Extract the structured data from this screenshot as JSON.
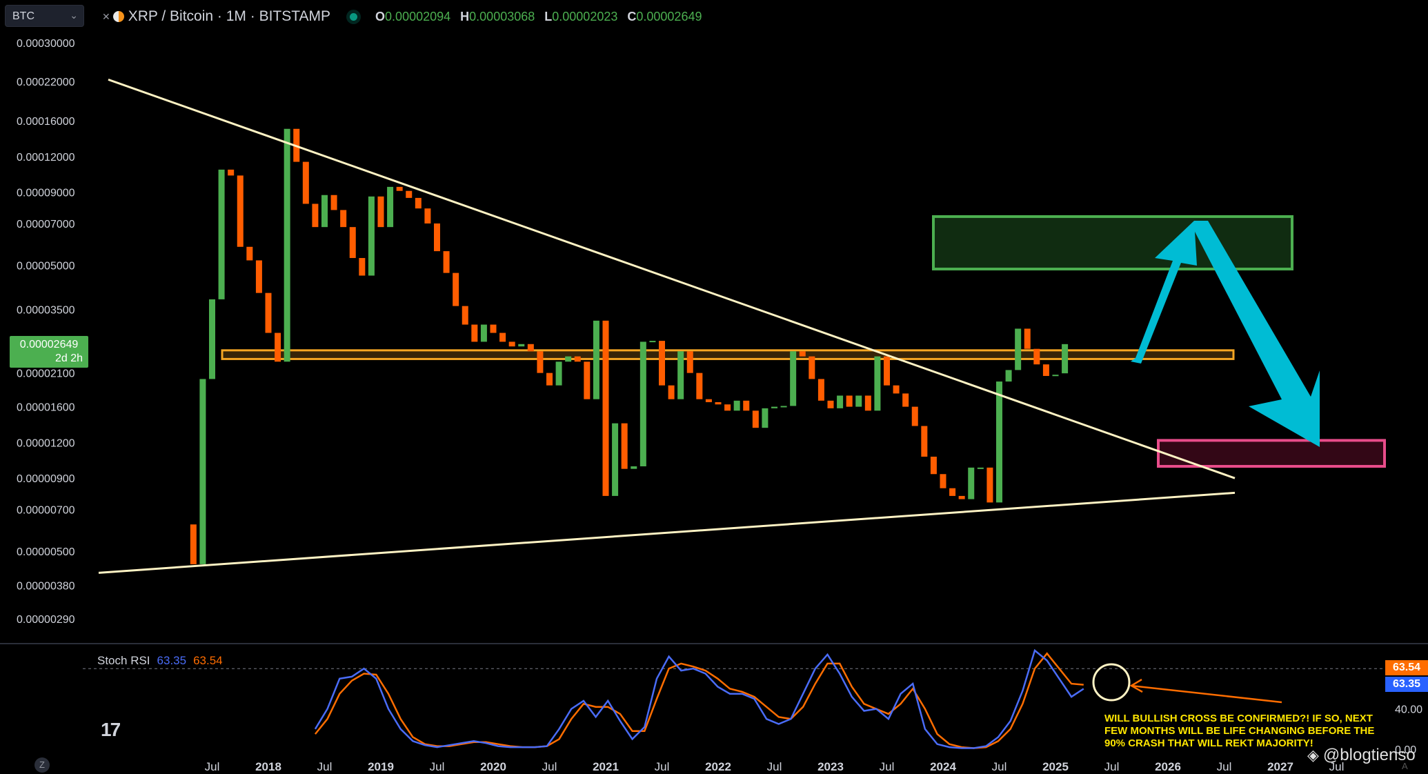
{
  "header": {
    "symbol_box": "BTC",
    "title": "XRP / Bitcoin · 1M · BITSTAMP",
    "ohlc": [
      {
        "k": "O",
        "v": "0.00002094"
      },
      {
        "k": "H",
        "v": "0.00003068"
      },
      {
        "k": "L",
        "v": "0.00002023"
      },
      {
        "k": "C",
        "v": "0.00002649"
      }
    ]
  },
  "price_badge": {
    "price": "0.00002649",
    "countdown": "2d 2h"
  },
  "colors": {
    "up": "#4caf50",
    "down": "#ff5d00",
    "trend": "#fff3c4",
    "stoch_k": "#4a6cf7",
    "stoch_d": "#ff6d00",
    "support_band": "#f5a623",
    "target_box": "#4caf50",
    "crash_box": "#e84c8a",
    "arrow": "#00bcd4"
  },
  "stoch": {
    "label": "Stoch RSI",
    "k": "63.35",
    "d": "63.54",
    "axis_labels": [
      "40.00",
      "0.00"
    ]
  },
  "annotation": "WILL BULLISH CROSS BE CONFIRMED?! IF SO, NEXT FEW MONTHS WILL BE LIFE CHANGING BEFORE THE 90% CRASH THAT WILL REKT MAJORITY!",
  "watermark": "@blogtienso",
  "zoom_button": "Z",
  "auto_label": "A",
  "chart_data": {
    "type": "candlestick",
    "title": "XRP / Bitcoin · 1M · BITSTAMP",
    "y_scale": "log",
    "y_ticks": [
      "0.00030000",
      "0.00022000",
      "0.00016000",
      "0.00012000",
      "0.00009000",
      "0.00007000",
      "0.00005000",
      "0.00003500",
      "0.00002100",
      "0.00001600",
      "0.00001200",
      "0.00000900",
      "0.00000700",
      "0.00000500",
      "0.00000380",
      "0.00000290"
    ],
    "x_ticks": [
      "Jul",
      "2018",
      "Jul",
      "2019",
      "Jul",
      "2020",
      "Jul",
      "2021",
      "Jul",
      "2022",
      "Jul",
      "2023",
      "Jul",
      "2024",
      "Jul",
      "2025",
      "Jul",
      "2026",
      "Jul",
      "2027",
      "Jul"
    ],
    "candles": [
      {
        "o": 6.2e-06,
        "c": 4.5e-06
      },
      {
        "o": 4.5e-06,
        "c": 2e-05
      },
      {
        "o": 2e-05,
        "c": 3.8e-05
      },
      {
        "o": 3.8e-05,
        "c": 0.000108
      },
      {
        "o": 0.000108,
        "c": 0.000103
      },
      {
        "o": 0.000103,
        "c": 5.8e-05
      },
      {
        "o": 5.8e-05,
        "c": 5.2e-05
      },
      {
        "o": 5.2e-05,
        "c": 4e-05
      },
      {
        "o": 4e-05,
        "c": 2.9e-05
      },
      {
        "o": 2.9e-05,
        "c": 2.3e-05
      },
      {
        "o": 2.3e-05,
        "c": 0.00015
      },
      {
        "o": 0.00015,
        "c": 0.000115
      },
      {
        "o": 0.000115,
        "c": 8.2e-05
      },
      {
        "o": 8.2e-05,
        "c": 6.8e-05
      },
      {
        "o": 6.8e-05,
        "c": 8.8e-05
      },
      {
        "o": 8.8e-05,
        "c": 7.8e-05
      },
      {
        "o": 7.8e-05,
        "c": 6.8e-05
      },
      {
        "o": 6.8e-05,
        "c": 5.3e-05
      },
      {
        "o": 5.3e-05,
        "c": 4.6e-05
      },
      {
        "o": 4.6e-05,
        "c": 8.7e-05
      },
      {
        "o": 8.7e-05,
        "c": 6.8e-05
      },
      {
        "o": 6.8e-05,
        "c": 9.4e-05
      },
      {
        "o": 9.4e-05,
        "c": 9.1e-05
      },
      {
        "o": 9.1e-05,
        "c": 8.6e-05
      },
      {
        "o": 8.6e-05,
        "c": 7.9e-05
      },
      {
        "o": 7.9e-05,
        "c": 7e-05
      },
      {
        "o": 7e-05,
        "c": 5.6e-05
      },
      {
        "o": 5.6e-05,
        "c": 4.7e-05
      },
      {
        "o": 4.7e-05,
        "c": 3.6e-05
      },
      {
        "o": 3.6e-05,
        "c": 3.1e-05
      },
      {
        "o": 3.1e-05,
        "c": 2.7e-05
      },
      {
        "o": 2.7e-05,
        "c": 3.1e-05
      },
      {
        "o": 3.1e-05,
        "c": 2.9e-05
      },
      {
        "o": 2.9e-05,
        "c": 2.7e-05
      },
      {
        "o": 2.7e-05,
        "c": 2.6e-05
      },
      {
        "o": 2.6e-05,
        "c": 2.65e-05
      },
      {
        "o": 2.65e-05,
        "c": 2.5e-05
      },
      {
        "o": 2.5e-05,
        "c": 2.1e-05
      },
      {
        "o": 2.1e-05,
        "c": 1.9e-05
      },
      {
        "o": 1.9e-05,
        "c": 2.3e-05
      },
      {
        "o": 2.3e-05,
        "c": 2.4e-05
      },
      {
        "o": 2.4e-05,
        "c": 2.3e-05
      },
      {
        "o": 2.3e-05,
        "c": 1.7e-05
      },
      {
        "o": 1.7e-05,
        "c": 3.2e-05
      },
      {
        "o": 3.2e-05,
        "c": 7.8e-06
      },
      {
        "o": 7.8e-06,
        "c": 1.4e-05
      },
      {
        "o": 1.4e-05,
        "c": 9.7e-06
      },
      {
        "o": 9.7e-06,
        "c": 9.9e-06
      },
      {
        "o": 9.9e-06,
        "c": 2.7e-05
      },
      {
        "o": 2.7e-05,
        "c": 2.72e-05
      },
      {
        "o": 2.72e-05,
        "c": 1.9e-05
      },
      {
        "o": 1.9e-05,
        "c": 1.7e-05
      },
      {
        "o": 1.7e-05,
        "c": 2.5e-05
      },
      {
        "o": 2.5e-05,
        "c": 2.1e-05
      },
      {
        "o": 2.1e-05,
        "c": 1.7e-05
      },
      {
        "o": 1.7e-05,
        "c": 1.66e-05
      },
      {
        "o": 1.66e-05,
        "c": 1.63e-05
      },
      {
        "o": 1.63e-05,
        "c": 1.55e-05
      },
      {
        "o": 1.55e-05,
        "c": 1.68e-05
      },
      {
        "o": 1.68e-05,
        "c": 1.55e-05
      },
      {
        "o": 1.55e-05,
        "c": 1.35e-05
      },
      {
        "o": 1.35e-05,
        "c": 1.58e-05
      },
      {
        "o": 1.58e-05,
        "c": 1.6e-05
      },
      {
        "o": 1.6e-05,
        "c": 1.61e-05
      },
      {
        "o": 1.61e-05,
        "c": 2.5e-05
      },
      {
        "o": 2.5e-05,
        "c": 2.4e-05
      },
      {
        "o": 2.4e-05,
        "c": 2e-05
      },
      {
        "o": 2e-05,
        "c": 1.68e-05
      },
      {
        "o": 1.68e-05,
        "c": 1.58e-05
      },
      {
        "o": 1.58e-05,
        "c": 1.75e-05
      },
      {
        "o": 1.75e-05,
        "c": 1.6e-05
      },
      {
        "o": 1.6e-05,
        "c": 1.75e-05
      },
      {
        "o": 1.75e-05,
        "c": 1.55e-05
      },
      {
        "o": 1.55e-05,
        "c": 2.4e-05
      },
      {
        "o": 2.4e-05,
        "c": 1.9e-05
      },
      {
        "o": 1.9e-05,
        "c": 1.78e-05
      },
      {
        "o": 1.78e-05,
        "c": 1.6e-05
      },
      {
        "o": 1.6e-05,
        "c": 1.37e-05
      },
      {
        "o": 1.37e-05,
        "c": 1.07e-05
      },
      {
        "o": 1.07e-05,
        "c": 9.3e-06
      },
      {
        "o": 9.3e-06,
        "c": 8.3e-06
      },
      {
        "o": 8.3e-06,
        "c": 7.8e-06
      },
      {
        "o": 7.8e-06,
        "c": 7.6e-06
      },
      {
        "o": 7.6e-06,
        "c": 9.8e-06
      },
      {
        "o": 9.8e-06,
        "c": 9.8e-06
      },
      {
        "o": 9.8e-06,
        "c": 7.4e-06
      },
      {
        "o": 7.4e-06,
        "c": 1.96e-05
      },
      {
        "o": 1.96e-05,
        "c": 2.15e-05
      },
      {
        "o": 2.15e-05,
        "c": 3e-05
      },
      {
        "o": 3e-05,
        "c": 2.55e-05
      },
      {
        "o": 2.55e-05,
        "c": 2.25e-05
      },
      {
        "o": 2.25e-05,
        "c": 2.05e-05
      },
      {
        "o": 2.05e-05,
        "c": 2.07e-05
      },
      {
        "o": 2.094e-05,
        "c": 2.649e-05
      }
    ],
    "lines": [
      {
        "name": "upper trendline",
        "from": [
          "mid 2017",
          0.000223
        ],
        "to": [
          "end 2026",
          9e-06
        ]
      },
      {
        "name": "lower trendline",
        "from": [
          "early 2017",
          4.2e-06
        ],
        "to": [
          "end 2026",
          8e-06
        ]
      }
    ],
    "zones": [
      {
        "name": "support band",
        "y": [
          2.35e-05,
          2.52e-05
        ]
      },
      {
        "name": "target zone",
        "y": [
          4.85e-05,
          7.4e-05
        ]
      },
      {
        "name": "crash zone",
        "y": [
          9.9e-06,
          1.22e-05
        ]
      }
    ],
    "stoch_rsi": {
      "k": [
        20,
        40,
        70,
        72,
        80,
        70,
        40,
        20,
        8,
        4,
        2,
        4,
        6,
        8,
        6,
        3,
        2,
        2,
        2,
        3,
        20,
        40,
        48,
        32,
        48,
        28,
        10,
        22,
        70,
        92,
        78,
        80,
        75,
        62,
        55,
        55,
        50,
        30,
        25,
        30,
        55,
        80,
        94,
        75,
        52,
        38,
        40,
        30,
        55,
        65,
        20,
        5,
        2,
        1,
        1,
        3,
        12,
        28,
        58,
        98,
        88,
        70,
        52,
        60
      ],
      "d": [
        15,
        30,
        55,
        68,
        75,
        74,
        55,
        30,
        12,
        5,
        3,
        3,
        5,
        7,
        7,
        5,
        3,
        2,
        2,
        3,
        10,
        30,
        45,
        42,
        42,
        35,
        18,
        18,
        50,
        80,
        85,
        82,
        78,
        70,
        60,
        57,
        52,
        42,
        32,
        30,
        42,
        65,
        85,
        85,
        62,
        45,
        40,
        35,
        45,
        60,
        40,
        15,
        5,
        2,
        1,
        2,
        8,
        20,
        45,
        80,
        95,
        80,
        65,
        64
      ]
    }
  }
}
